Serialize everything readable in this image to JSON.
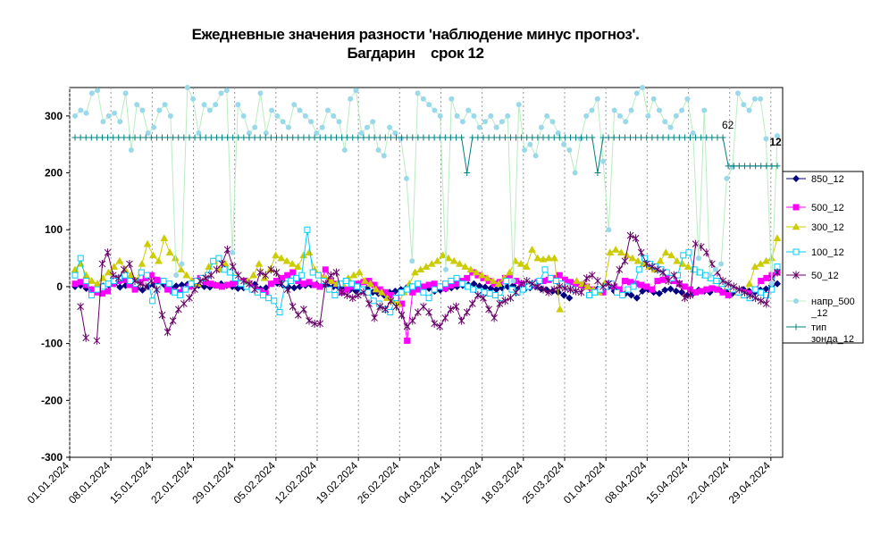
{
  "title_line1": "Ежедневные значения разности 'наблюдение минус прогноз'.",
  "title_line2": "Багдарин    срок 12",
  "chart_data": {
    "type": "line",
    "title": "Ежедневные значения разности 'наблюдение минус прогноз'. Багдарин    срок 12",
    "ylim": [
      -300,
      350
    ],
    "yticks": [
      -300,
      -200,
      -100,
      0,
      100,
      200,
      300
    ],
    "x_start": "01.01.2024",
    "x_end": "01.05.2024",
    "x_tick_labels": [
      "01.01.2024",
      "08.01.2024",
      "15.01.2024",
      "22.01.2024",
      "29.01.2024",
      "05.02.2024",
      "12.02.2024",
      "19.02.2024",
      "26.02.2024",
      "04.03.2024",
      "11.03.2024",
      "18.03.2024",
      "25.03.2024",
      "01.04.2024",
      "08.04.2024",
      "15.04.2024",
      "22.04.2024",
      "29.04.2024"
    ],
    "grid": "vertical",
    "legend_position": "right",
    "annotations": [
      {
        "text": "62",
        "x": "22.04.2024",
        "y": 262
      },
      {
        "text": "12",
        "x": "01.05.2024",
        "y": 232
      }
    ],
    "series": [
      {
        "name": "850_12",
        "color": "#000080",
        "marker": "diamond",
        "values": [
          0,
          2,
          -3,
          -5,
          -2,
          1,
          3,
          5,
          -1,
          2,
          4,
          -3,
          -6,
          0,
          3,
          5,
          2,
          -2,
          1,
          3,
          4,
          6,
          2,
          0,
          -1,
          3,
          5,
          2,
          0,
          -3,
          -2,
          1,
          4,
          -4,
          -2,
          5,
          6,
          3,
          -1,
          -2,
          0,
          2,
          3,
          4,
          2,
          1,
          0,
          -2,
          -3,
          -5,
          -8,
          -6,
          -3,
          -10,
          -12,
          -15,
          -10,
          -8,
          -5,
          -2,
          0,
          2,
          -5,
          -3,
          -8,
          -6,
          -4,
          -2,
          0,
          2,
          3,
          5,
          1,
          -1,
          -3,
          -5,
          -2,
          0,
          2,
          -3,
          -5,
          -2,
          0,
          -4,
          -6,
          -8,
          -10,
          -15,
          -20,
          null,
          null,
          null,
          -6,
          -4,
          -2,
          0,
          -8,
          -10,
          -12,
          -15,
          -20,
          -8,
          -5,
          -10,
          -12,
          -6,
          -4,
          -8,
          -10,
          -15,
          -12,
          -6,
          -8,
          -10,
          -5,
          -8,
          -10,
          -12,
          -10,
          -5,
          -8,
          -10,
          -6,
          -4,
          2,
          5
        ]
      },
      {
        "name": "500_12",
        "color": "#FF00FF",
        "marker": "square",
        "values": [
          5,
          8,
          3,
          -5,
          -10,
          -12,
          -8,
          5,
          10,
          12,
          3,
          -5,
          8,
          15,
          20,
          12,
          10,
          -5,
          -8,
          -10,
          -5,
          0,
          10,
          15,
          8,
          5,
          2,
          0,
          3,
          5,
          8,
          10,
          5,
          -3,
          -8,
          -12,
          5,
          10,
          15,
          20,
          25,
          10,
          5,
          8,
          3,
          0,
          30,
          10,
          5,
          -10,
          -5,
          0,
          5,
          8,
          10,
          3,
          -5,
          -10,
          -15,
          -20,
          -30,
          -95,
          -10,
          -5,
          0,
          3,
          5,
          0,
          -3,
          2,
          5,
          10,
          15,
          25,
          20,
          15,
          10,
          5,
          8,
          15,
          20,
          10,
          5,
          0,
          3,
          8,
          10,
          12,
          15,
          20,
          12,
          8,
          5,
          3,
          0,
          -5,
          -8,
          -10,
          5,
          0,
          -5,
          10,
          8,
          5,
          3,
          0,
          -5,
          10,
          12,
          15,
          10,
          5,
          0,
          -5,
          -10,
          -8,
          -5,
          -3,
          -5,
          -10,
          -15,
          -5,
          -8,
          -10,
          -12,
          -5,
          10,
          15,
          20,
          25
        ]
      },
      {
        "name": "300_12",
        "color": "#CCCC00",
        "marker": "triangle",
        "values": [
          30,
          40,
          20,
          10,
          5,
          15,
          25,
          35,
          45,
          30,
          20,
          10,
          40,
          75,
          55,
          45,
          85,
          60,
          50,
          30,
          20,
          10,
          5,
          15,
          35,
          45,
          30,
          40,
          25,
          15,
          5,
          10,
          20,
          40,
          15,
          30,
          55,
          50,
          45,
          40,
          35,
          55,
          60,
          30,
          20,
          15,
          10,
          5,
          5,
          15,
          20,
          25,
          10,
          5,
          -5,
          -10,
          -20,
          -25,
          -30,
          -10,
          5,
          25,
          30,
          35,
          40,
          45,
          55,
          50,
          45,
          40,
          35,
          30,
          25,
          20,
          15,
          10,
          5,
          15,
          25,
          45,
          40,
          35,
          65,
          50,
          48,
          50,
          50,
          -40,
          null,
          null,
          10,
          5,
          0,
          -5,
          -10,
          5,
          60,
          65,
          60,
          55,
          50,
          45,
          40,
          35,
          30,
          45,
          60,
          55,
          45,
          40,
          35,
          30,
          25,
          20,
          15,
          10,
          5,
          0,
          -5,
          -10,
          -15,
          5,
          35,
          40,
          45,
          50,
          85
        ]
      },
      {
        "name": "100_12",
        "color": "#00CCFF",
        "marker": "square-open",
        "values": [
          20,
          50,
          10,
          -15,
          -5,
          0,
          5,
          10,
          15,
          20,
          10,
          5,
          25,
          20,
          -25,
          0,
          10,
          5,
          -10,
          -15,
          -5,
          5,
          10,
          15,
          20,
          45,
          50,
          30,
          25,
          15,
          5,
          0,
          -5,
          -10,
          -15,
          -20,
          -25,
          -45,
          5,
          10,
          15,
          20,
          100,
          25,
          20,
          10,
          -5,
          -15,
          5,
          10,
          5,
          0,
          -5,
          -10,
          -25,
          -30,
          -40,
          -45,
          -20,
          -10,
          -5,
          0,
          5,
          -10,
          -20,
          -5,
          0,
          5,
          10,
          15,
          5,
          0,
          -5,
          -8,
          -10,
          -12,
          -15,
          -20,
          10,
          -5,
          -10,
          -5,
          0,
          5,
          10,
          30,
          15,
          10,
          5,
          0,
          -5,
          null,
          null,
          -15,
          -10,
          -5,
          0,
          5,
          -10,
          -15,
          -5,
          0,
          30,
          50,
          40,
          35,
          30,
          25,
          15,
          20,
          55,
          60,
          30,
          25,
          20,
          15,
          10,
          5,
          0,
          -5,
          -10,
          -15,
          -20,
          -5,
          -10,
          -15,
          -5,
          35
        ]
      },
      {
        "name": "50_12",
        "color": "#660066",
        "marker": "star",
        "values": [
          null,
          -35,
          -90,
          null,
          -95,
          40,
          60,
          20,
          15,
          30,
          40,
          10,
          5,
          0,
          10,
          -5,
          -50,
          -80,
          -60,
          -40,
          -30,
          -20,
          -5,
          10,
          15,
          20,
          30,
          40,
          65,
          35,
          20,
          10,
          5,
          -5,
          25,
          20,
          30,
          25,
          5,
          -5,
          -35,
          -50,
          -40,
          -60,
          -65,
          -65,
          5,
          20,
          25,
          -10,
          -15,
          -20,
          -15,
          -10,
          -30,
          -55,
          -35,
          -40,
          -25,
          -35,
          -50,
          -70,
          -60,
          -45,
          -35,
          -45,
          -65,
          -70,
          -55,
          -40,
          -35,
          -60,
          -45,
          -30,
          -15,
          -20,
          -40,
          -55,
          -30,
          -25,
          -20,
          -10,
          5,
          10,
          5,
          0,
          -5,
          -10,
          -5,
          0,
          -3,
          -5,
          -8,
          -10,
          15,
          20,
          10,
          0,
          5,
          0,
          30,
          45,
          90,
          85,
          60,
          40,
          35,
          30,
          25,
          10,
          20,
          5,
          -20,
          -15,
          75,
          70,
          60,
          40,
          25,
          10,
          5,
          0,
          -5,
          -10,
          -15,
          -20,
          -25,
          -30,
          15,
          25
        ]
      },
      {
        "name": "напр_500_12",
        "color": "#99D9EA",
        "marker": "circle-light",
        "values": [
          300,
          310,
          305,
          340,
          345,
          290,
          300,
          305,
          290,
          340,
          240,
          320,
          310,
          270,
          280,
          310,
          320,
          300,
          20,
          40,
          350,
          330,
          270,
          320,
          310,
          320,
          340,
          345,
          60,
          320,
          300,
          270,
          280,
          340,
          270,
          310,
          300,
          290,
          280,
          320,
          310,
          300,
          290,
          270,
          280,
          310,
          300,
          290,
          240,
          330,
          345,
          270,
          280,
          290,
          240,
          230,
          280,
          270,
          260,
          190,
          45,
          340,
          330,
          320,
          310,
          300,
          30,
          330,
          300,
          290,
          310,
          300,
          280,
          290,
          300,
          280,
          290,
          300,
          10,
          320,
          240,
          250,
          230,
          280,
          300,
          290,
          270,
          250,
          240,
          200,
          260,
          300,
          310,
          330,
          220,
          100,
          310,
          300,
          290,
          310,
          340,
          350,
          300,
          330,
          310,
          290,
          280,
          300,
          310,
          330,
          270,
          50,
          310,
          20,
          30,
          40,
          190,
          210,
          340,
          320,
          310,
          330,
          330,
          260,
          5,
          265
        ]
      },
      {
        "name": "тип зонда_12",
        "color": "#008080",
        "marker": "plus",
        "values": [
          262,
          262,
          262,
          262,
          262,
          262,
          262,
          262,
          262,
          262,
          262,
          262,
          262,
          262,
          262,
          262,
          262,
          262,
          262,
          262,
          262,
          262,
          262,
          262,
          262,
          262,
          262,
          262,
          262,
          262,
          262,
          262,
          262,
          262,
          262,
          262,
          262,
          262,
          262,
          262,
          262,
          262,
          262,
          262,
          262,
          262,
          262,
          262,
          262,
          262,
          262,
          262,
          262,
          262,
          262,
          262,
          262,
          262,
          262,
          262,
          262,
          262,
          262,
          262,
          262,
          262,
          262,
          262,
          262,
          262,
          262,
          262,
          200,
          262,
          262,
          262,
          262,
          262,
          262,
          262,
          262,
          262,
          262,
          262,
          262,
          262,
          262,
          262,
          262,
          262,
          262,
          262,
          262,
          262,
          262,
          262,
          200,
          262,
          262,
          262,
          262,
          262,
          262,
          262,
          262,
          262,
          262,
          262,
          262,
          262,
          262,
          262,
          262,
          262,
          262,
          262,
          262,
          262,
          262,
          262,
          212,
          212,
          212,
          212,
          212,
          212,
          212,
          212,
          212,
          212
        ]
      }
    ]
  }
}
